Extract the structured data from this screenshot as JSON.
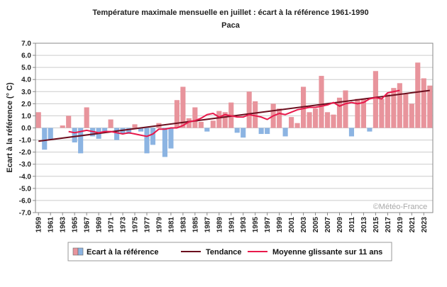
{
  "chart_data": {
    "type": "bar",
    "title": "Température maximale mensuelle en juillet : écart à la référence 1961-1990",
    "subtitle": "Paca",
    "ylabel": "Ecart à la référence (° C)",
    "ylim": [
      -7,
      7
    ],
    "yticks": [
      "7.0",
      "6.0",
      "5.0",
      "4.0",
      "3.0",
      "2.0",
      "1.0",
      "0.0",
      "-1.0",
      "-2.0",
      "-3.0",
      "-4.0",
      "-5.0",
      "-6.0",
      "-7.0"
    ],
    "xtick_labels": [
      "1959",
      "1961",
      "1963",
      "1965",
      "1967",
      "1969",
      "1971",
      "1973",
      "1975",
      "1977",
      "1979",
      "1981",
      "1983",
      "1985",
      "1987",
      "1989",
      "1991",
      "1993",
      "1995",
      "1997",
      "1999",
      "2001",
      "2003",
      "2005",
      "2007",
      "2009",
      "2011",
      "2013",
      "2015",
      "2017",
      "2019",
      "2021",
      "2023"
    ],
    "grid": true,
    "years": [
      1959,
      1960,
      1961,
      1962,
      1963,
      1964,
      1965,
      1966,
      1967,
      1968,
      1969,
      1970,
      1971,
      1972,
      1973,
      1974,
      1975,
      1976,
      1977,
      1978,
      1979,
      1980,
      1981,
      1982,
      1983,
      1984,
      1985,
      1986,
      1987,
      1988,
      1989,
      1990,
      1991,
      1992,
      1993,
      1994,
      1995,
      1996,
      1997,
      1998,
      1999,
      2000,
      2001,
      2002,
      2003,
      2004,
      2005,
      2006,
      2007,
      2008,
      2009,
      2010,
      2011,
      2012,
      2013,
      2014,
      2015,
      2016,
      2017,
      2018,
      2019,
      2020,
      2021,
      2022,
      2023,
      2024
    ],
    "values": [
      1.3,
      -1.8,
      -1.0,
      0.0,
      0.2,
      1.0,
      -1.2,
      -2.1,
      1.7,
      -0.7,
      -0.9,
      -0.3,
      0.7,
      -1.0,
      -0.5,
      -0.5,
      0.3,
      -0.3,
      -2.1,
      -1.4,
      0.4,
      -2.4,
      -1.7,
      2.3,
      3.4,
      0.8,
      1.7,
      0.5,
      -0.3,
      0.6,
      1.4,
      1.3,
      2.1,
      -0.4,
      -0.8,
      3.0,
      2.2,
      -0.5,
      -0.5,
      2.0,
      1.6,
      -0.7,
      0.9,
      0.4,
      3.4,
      1.3,
      1.6,
      4.3,
      1.3,
      1.1,
      2.5,
      3.1,
      -0.7,
      2.4,
      2.4,
      -0.3,
      4.7,
      2.4,
      2.8,
      3.3,
      3.7,
      2.8,
      2.0,
      5.4,
      4.1,
      3.5
    ],
    "trend": {
      "name": "Tendance",
      "start": [
        1959,
        -1.1
      ],
      "end": [
        2024,
        3.1
      ]
    },
    "moving_average": {
      "name": "Moyenne glissante sur 11 ans",
      "years": [
        1964,
        1965,
        1966,
        1967,
        1968,
        1969,
        1970,
        1971,
        1972,
        1973,
        1974,
        1975,
        1976,
        1977,
        1978,
        1979,
        1980,
        1981,
        1982,
        1983,
        1984,
        1985,
        1986,
        1987,
        1988,
        1989,
        1990,
        1991,
        1992,
        1993,
        1994,
        1995,
        1996,
        1997,
        1998,
        1999,
        2000,
        2001,
        2002,
        2003,
        2004,
        2005,
        2006,
        2007,
        2008,
        2009,
        2010,
        2011,
        2012,
        2013,
        2014,
        2015,
        2016,
        2017,
        2018,
        2019
      ],
      "values": [
        -0.3,
        -0.4,
        -0.3,
        -0.2,
        -0.3,
        -0.4,
        -0.3,
        -0.3,
        -0.4,
        -0.5,
        -0.4,
        -0.5,
        -0.6,
        -0.7,
        -0.5,
        -0.1,
        -0.1,
        0.0,
        0.0,
        0.2,
        0.5,
        0.6,
        0.8,
        1.1,
        1.2,
        0.9,
        1.1,
        1.0,
        0.9,
        0.9,
        1.1,
        1.0,
        0.9,
        0.7,
        1.0,
        1.2,
        1.1,
        1.3,
        1.5,
        1.6,
        1.7,
        1.7,
        1.8,
        1.9,
        2.1,
        1.8,
        2.0,
        2.1,
        2.0,
        2.1,
        2.4,
        2.5,
        2.4,
        2.9,
        3.0,
        3.1
      ]
    },
    "legend": {
      "placement": "bottom",
      "bar_label": "Ecart à la référence",
      "trend_label": "Tendance",
      "ma_label": "Moyenne glissante sur 11 ans"
    },
    "watermark": "©Météo-France",
    "colors": {
      "positive": "#e8949c",
      "negative": "#8cb4e2",
      "trend": "#6b0e1e",
      "moving_average": "#e8194b",
      "grid": "#cccccc"
    }
  }
}
